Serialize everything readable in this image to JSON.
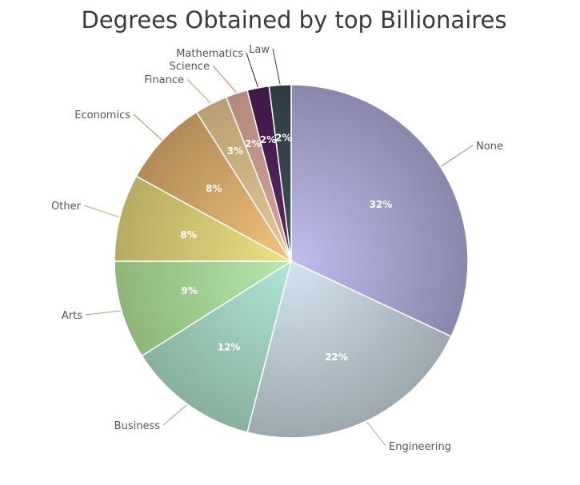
{
  "chart_data": {
    "type": "pie",
    "title": "Degrees Obtained by top Billionaires",
    "slices": [
      {
        "label": "None",
        "value": 32,
        "display": "32%",
        "color_light": "#c0bdee",
        "color_dark": "#8a87ab"
      },
      {
        "label": "Engineering",
        "value": 22,
        "display": "22%",
        "color_light": "#d3e4f1",
        "color_dark": "#9da8ae"
      },
      {
        "label": "Business",
        "value": 12,
        "display": "12%",
        "color_light": "#b0e6d6",
        "color_dark": "#88b09e"
      },
      {
        "label": "Arts",
        "value": 9,
        "display": "9%",
        "color_light": "#b5eab0",
        "color_dark": "#8fb578"
      },
      {
        "label": "Other",
        "value": 8,
        "display": "8%",
        "color_light": "#ece184",
        "color_dark": "#b5ac62"
      },
      {
        "label": "Economics",
        "value": 8,
        "display": "8%",
        "color_light": "#f4c47c",
        "color_dark": "#b18a56"
      },
      {
        "label": "Finance",
        "value": 3,
        "display": "3%",
        "color_light": "#e4ca98",
        "color_dark": "#b8a072"
      },
      {
        "label": "Science",
        "value": 2,
        "display": "2%",
        "color_light": "#d8a49e",
        "color_dark": "#b28a7c"
      },
      {
        "label": "Mathematics",
        "value": 2,
        "display": "2%",
        "color_light": "#5a2a62",
        "color_dark": "#3e1846"
      },
      {
        "label": "Law",
        "value": 2,
        "display": "2%",
        "color_light": "#3f5256",
        "color_dark": "#2d3c3f"
      }
    ],
    "legend": "none",
    "start": "top",
    "direction": "clockwise"
  }
}
